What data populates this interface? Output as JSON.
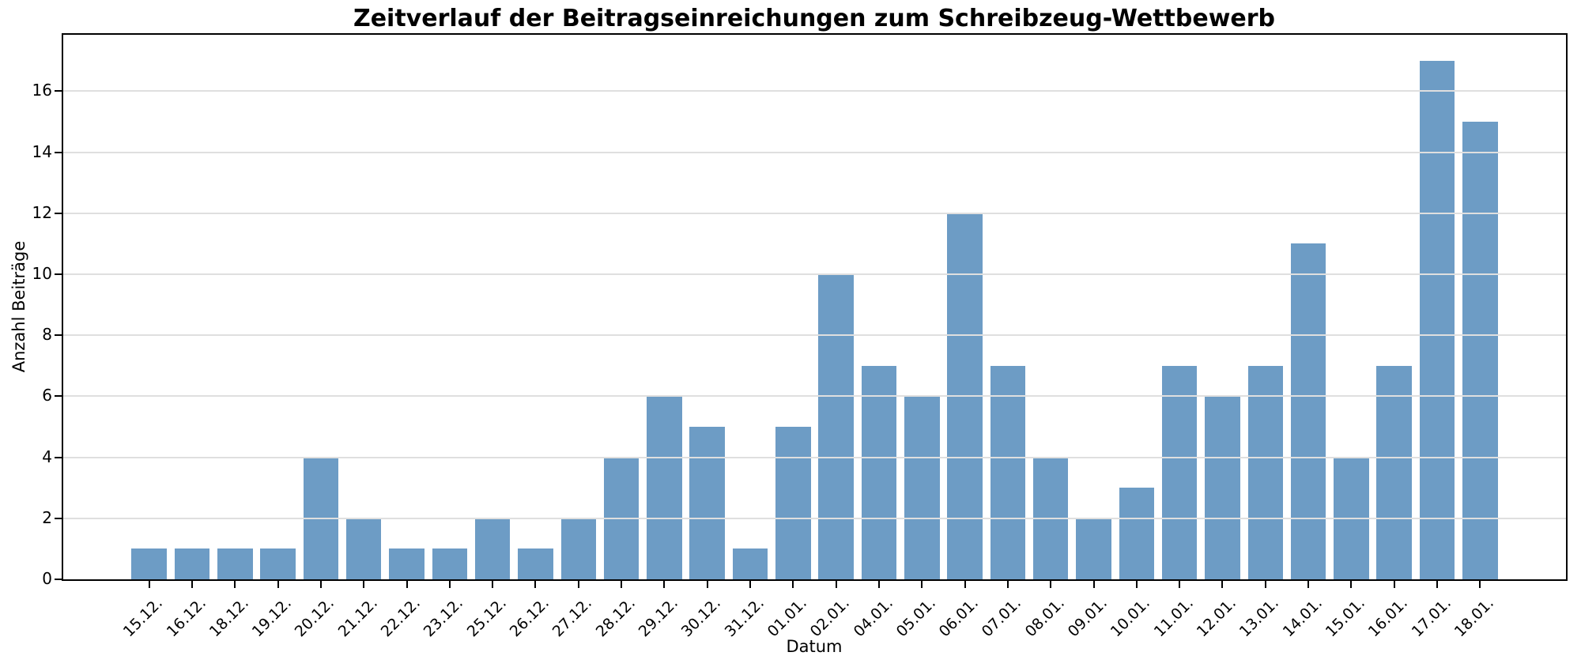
{
  "chart_data": {
    "type": "bar",
    "title": "Zeitverlauf der Beitragseinreichungen zum Schreibzeug-Wettbewerb",
    "xlabel": "Datum",
    "ylabel": "Anzahl Beiträge",
    "categories": [
      "15.12.",
      "16.12.",
      "18.12.",
      "19.12.",
      "20.12.",
      "21.12.",
      "22.12.",
      "23.12.",
      "25.12.",
      "26.12.",
      "27.12.",
      "28.12.",
      "29.12.",
      "30.12.",
      "31.12.",
      "01.01.",
      "02.01.",
      "04.01.",
      "05.01.",
      "06.01.",
      "07.01.",
      "08.01.",
      "09.01.",
      "10.01.",
      "11.01.",
      "12.01.",
      "13.01.",
      "14.01.",
      "15.01.",
      "16.01.",
      "17.01.",
      "18.01."
    ],
    "values": [
      1,
      1,
      1,
      1,
      4,
      2,
      1,
      1,
      2,
      1,
      2,
      4,
      6,
      5,
      1,
      5,
      10,
      7,
      6,
      12,
      7,
      4,
      2,
      3,
      7,
      6,
      7,
      11,
      4,
      7,
      17,
      15
    ],
    "yticks": [
      0,
      2,
      4,
      6,
      8,
      10,
      12,
      14,
      16
    ],
    "ylim": [
      0,
      17.85
    ],
    "grid": "horizontal-on-top",
    "legend": "none",
    "bar_color": "#6d9cc5",
    "grid_color": "#dfdfdf",
    "spine_color": "#000000",
    "background": "#ffffff"
  }
}
